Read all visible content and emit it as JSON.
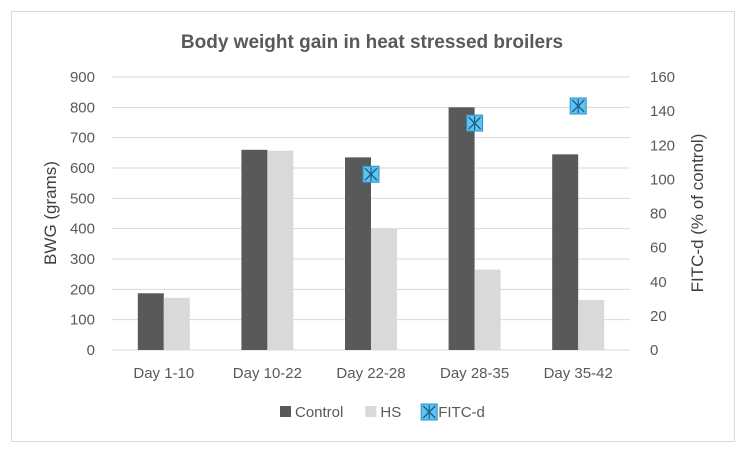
{
  "chart_data": {
    "type": "bar",
    "title": "Body weight gain in heat stressed broilers",
    "categories": [
      "Day 1-10",
      "Day 10-22",
      "Day 22-28",
      "Day 28-35",
      "Day 35-42"
    ],
    "series": [
      {
        "name": "Control",
        "kind": "bar",
        "axis": "left",
        "color": "#595959",
        "values": [
          187,
          660,
          635,
          800,
          645
        ]
      },
      {
        "name": "HS",
        "kind": "bar",
        "axis": "left",
        "color": "#d9d9d9",
        "values": [
          172,
          657,
          400,
          265,
          165
        ]
      },
      {
        "name": "FITC-d",
        "kind": "marker",
        "axis": "right",
        "color": "#5bc5f2",
        "values": [
          null,
          null,
          103,
          133,
          143
        ]
      }
    ],
    "ylabel": "BWG (grams)",
    "y2label": "FITC-d (% of control)",
    "ylim": [
      0,
      900
    ],
    "y2lim": [
      0,
      160
    ],
    "yticks": [
      "0",
      "100",
      "200",
      "300",
      "400",
      "500",
      "600",
      "700",
      "800",
      "900"
    ],
    "y2ticks": [
      "0",
      "20",
      "40",
      "60",
      "80",
      "100",
      "120",
      "140",
      "160"
    ],
    "grid": true,
    "legend_position": "bottom"
  }
}
